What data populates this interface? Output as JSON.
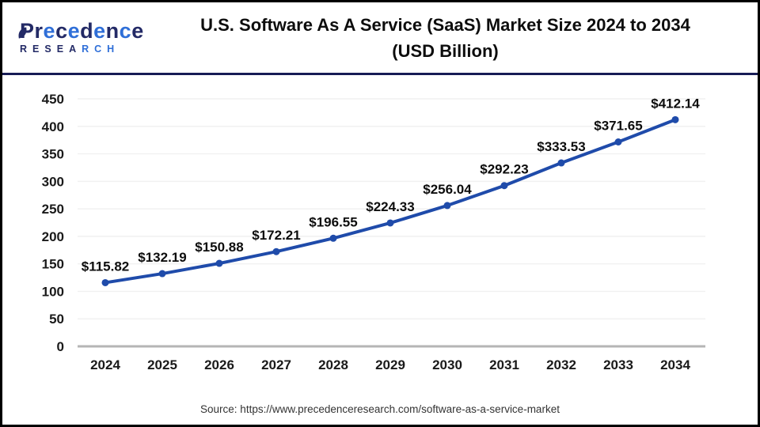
{
  "header": {
    "logo": {
      "line1": "Precedence",
      "line2": "RESEARCH"
    },
    "title_line1": "U.S. Software As A Service (SaaS) Market Size 2024 to 2034",
    "title_line2": "(USD Billion)"
  },
  "footer": {
    "source": "Source: https://www.precedenceresearch.com/software-as-a-service-market"
  },
  "brand_colors": {
    "navy": "#232a66",
    "blue": "#2f6fd8"
  },
  "chart_data": {
    "type": "line",
    "title": "U.S. Software As A Service (SaaS) Market Size 2024 to 2034 (USD Billion)",
    "xlabel": "",
    "ylabel": "",
    "x": [
      2024,
      2025,
      2026,
      2027,
      2028,
      2029,
      2030,
      2031,
      2032,
      2033,
      2034
    ],
    "values": [
      115.82,
      132.19,
      150.88,
      172.21,
      196.55,
      224.33,
      256.04,
      292.23,
      333.53,
      371.65,
      412.14
    ],
    "value_prefix": "$",
    "ylim": [
      0,
      450
    ],
    "ytick_step": 50,
    "grid": "horizontal",
    "legend": "none",
    "line_color": "#1f4baa",
    "marker": "circle"
  }
}
